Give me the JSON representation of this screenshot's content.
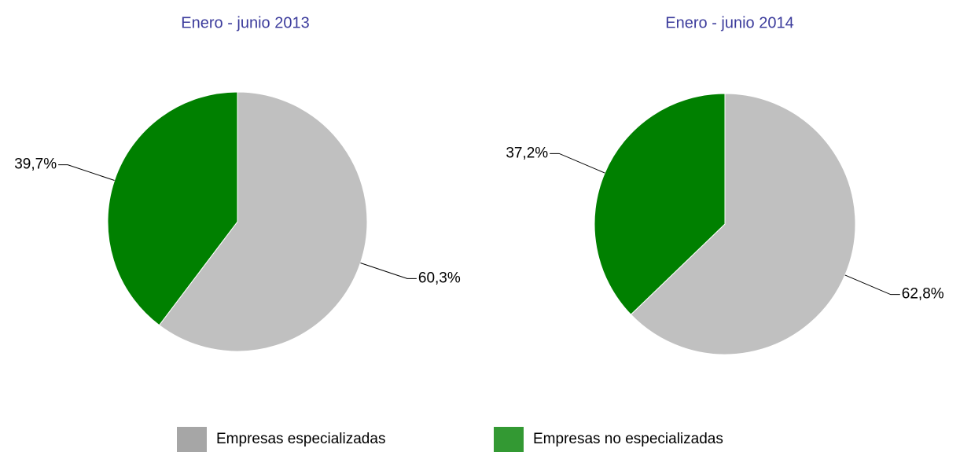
{
  "chart_data": [
    {
      "type": "pie",
      "title": "Enero - junio 2013",
      "categories": [
        "Empresas especializadas",
        "Empresas no especializadas"
      ],
      "values": [
        60.3,
        39.7
      ],
      "value_labels": [
        "60,3%",
        "39,7%"
      ],
      "colors": [
        "#c0c0c0",
        "#008000"
      ]
    },
    {
      "type": "pie",
      "title": "Enero - junio 2014",
      "categories": [
        "Empresas especializadas",
        "Empresas no especializadas"
      ],
      "values": [
        62.8,
        37.2
      ],
      "value_labels": [
        "62,8%",
        "37,2%"
      ],
      "colors": [
        "#c0c0c0",
        "#008000"
      ]
    }
  ]
}
